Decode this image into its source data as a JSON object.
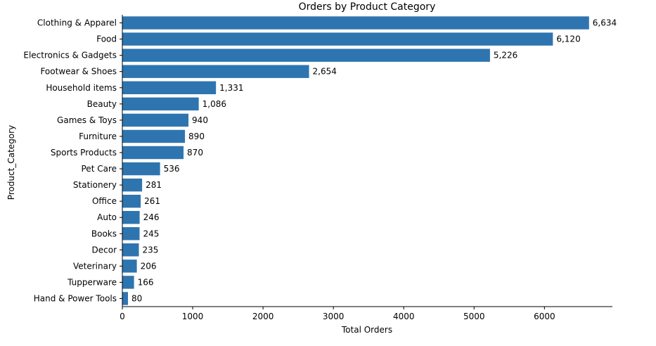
{
  "chart_data": {
    "type": "bar",
    "orientation": "horizontal",
    "title": "Orders by Product Category",
    "xlabel": "Total Orders",
    "ylabel": "Product_Category",
    "xlim": [
      0,
      6966
    ],
    "xticks": [
      0,
      1000,
      2000,
      3000,
      4000,
      5000,
      6000
    ],
    "grid": false,
    "bar_color": "#2e75b0",
    "categories": [
      "Clothing & Apparel",
      "Food",
      "Electronics & Gadgets",
      "Footwear & Shoes",
      "Household items",
      "Beauty",
      "Games & Toys",
      "Furniture",
      "Sports Products",
      "Pet Care",
      "Stationery",
      "Office",
      "Auto",
      "Books",
      "Decor",
      "Veterinary",
      "Tupperware",
      "Hand & Power Tools"
    ],
    "values": [
      6634,
      6120,
      5226,
      2654,
      1331,
      1086,
      940,
      890,
      870,
      536,
      281,
      261,
      246,
      245,
      235,
      206,
      166,
      80
    ],
    "data_labels": [
      "6,634",
      "6,120",
      "5,226",
      "2,654",
      "1,331",
      "1,086",
      "940",
      "890",
      "870",
      "536",
      "281",
      "261",
      "246",
      "245",
      "235",
      "206",
      "166",
      "80"
    ]
  }
}
